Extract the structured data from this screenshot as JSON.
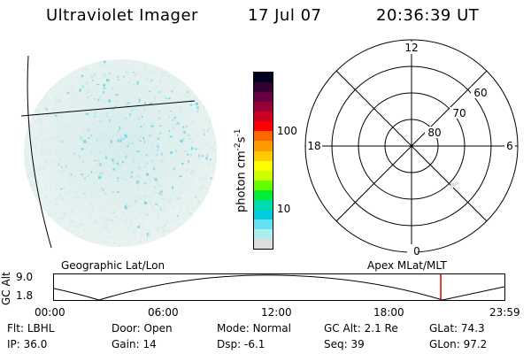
{
  "header": {
    "instrument": "Ultraviolet Imager",
    "date": "17 Jul 07",
    "time": "20:36:39 UT"
  },
  "colorbar": {
    "unit_label": "photon cm",
    "unit_exp1": "-2",
    "unit_s": "s",
    "unit_exp2": "-1",
    "ticks": [
      "100",
      "10"
    ],
    "colors": [
      "#000022",
      "#330033",
      "#660044",
      "#990033",
      "#cc0022",
      "#ff0000",
      "#ff6600",
      "#ff9900",
      "#ffcc00",
      "#ffff00",
      "#ccff00",
      "#66ff00",
      "#00ee33",
      "#00ddaa",
      "#00ccdd",
      "#66e0ee",
      "#aaeeee",
      "#dddddd"
    ]
  },
  "polar_plot": {
    "mlt_labels": [
      "12",
      "18",
      "6",
      "0"
    ],
    "mlat_labels": [
      "60",
      "70",
      "80"
    ]
  },
  "timeline": {
    "left_title": "Geographic Lat/Lon",
    "right_title": "Apex MLat/MLT",
    "yaxis_label": "GC Alt",
    "y_ticks": [
      "9.0",
      "1.8"
    ],
    "x_ticks": [
      "00:00",
      "06:00",
      "12:00",
      "18:00",
      "23:59"
    ],
    "current_time_fraction": 0.8587,
    "marker_color": "#cc0000"
  },
  "footer": {
    "row1": [
      {
        "label": "Flt:",
        "value": "LBHL"
      },
      {
        "label": "Door:",
        "value": "Open"
      },
      {
        "label": "Mode:",
        "value": "Normal"
      },
      {
        "label": "GC Alt:",
        "value": "2.1 Re"
      },
      {
        "label": "GLat:",
        "value": "74.3"
      }
    ],
    "row2": [
      {
        "label": "IP:",
        "value": "36.0"
      },
      {
        "label": "Gain:",
        "value": "14"
      },
      {
        "label": "Dsp:",
        "value": "-6.1"
      },
      {
        "label": "Seq:",
        "value": "39"
      },
      {
        "label": "GLon:",
        "value": "97.2"
      }
    ]
  }
}
